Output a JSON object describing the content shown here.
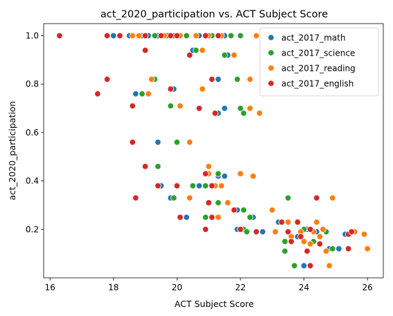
{
  "chart_data": {
    "type": "scatter",
    "title": "act_2020_participation vs. ACT Subject Score",
    "xlabel": "ACT Subject Score",
    "ylabel": "act_2020_participation",
    "xlim": [
      15.8,
      26.5
    ],
    "ylim": [
      0.0,
      1.05
    ],
    "xticks": [
      "16",
      "18",
      "20",
      "22",
      "24",
      "26"
    ],
    "xtick_values": [
      16,
      18,
      20,
      22,
      24,
      26
    ],
    "yticks": [
      "0.2",
      "0.4",
      "0.6",
      "0.8",
      "1.0"
    ],
    "ytick_values": [
      0.2,
      0.4,
      0.6,
      0.8,
      1.0
    ],
    "grid": false,
    "legend_position": "top-right",
    "series": [
      {
        "name": "act_2017_math",
        "color": "#1f77b4",
        "points": [
          [
            18.0,
            1.0
          ],
          [
            18.5,
            1.0
          ],
          [
            18.8,
            1.0
          ],
          [
            19.1,
            1.0
          ],
          [
            19.4,
            1.0
          ],
          [
            19.7,
            1.0
          ],
          [
            20.1,
            1.0
          ],
          [
            20.7,
            1.0
          ],
          [
            21.5,
            1.0
          ],
          [
            22.0,
            1.0
          ],
          [
            20.5,
            0.94
          ],
          [
            21.6,
            0.92
          ],
          [
            19.9,
            0.78
          ],
          [
            21.3,
            0.82
          ],
          [
            18.7,
            0.76
          ],
          [
            21.3,
            0.68
          ],
          [
            21.5,
            0.7
          ],
          [
            19.4,
            0.56
          ],
          [
            21.0,
            0.43
          ],
          [
            21.3,
            0.42
          ],
          [
            21.5,
            0.42
          ],
          [
            19.5,
            0.38
          ],
          [
            20.7,
            0.38
          ],
          [
            19.8,
            0.33
          ],
          [
            20.3,
            0.25
          ],
          [
            21.3,
            0.31
          ],
          [
            21.9,
            0.28
          ],
          [
            22.4,
            0.25
          ],
          [
            21.9,
            0.2
          ],
          [
            22.7,
            0.19
          ],
          [
            23.2,
            0.23
          ],
          [
            23.4,
            0.15
          ],
          [
            23.4,
            0.11
          ],
          [
            23.8,
            0.17
          ],
          [
            24.0,
            0.2
          ],
          [
            24.1,
            0.2
          ],
          [
            24.0,
            0.05
          ],
          [
            24.4,
            0.19
          ],
          [
            24.8,
            0.12
          ],
          [
            25.1,
            0.12
          ],
          [
            25.3,
            0.18
          ],
          [
            25.5,
            0.19
          ]
        ]
      },
      {
        "name": "act_2017_science",
        "color": "#2ca02c",
        "points": [
          [
            18.2,
            1.0
          ],
          [
            18.9,
            1.0
          ],
          [
            19.3,
            1.0
          ],
          [
            19.9,
            1.0
          ],
          [
            20.3,
            1.0
          ],
          [
            21.1,
            1.0
          ],
          [
            21.7,
            1.0
          ],
          [
            22.0,
            1.0
          ],
          [
            20.6,
            0.94
          ],
          [
            21.5,
            0.92
          ],
          [
            19.3,
            0.82
          ],
          [
            21.9,
            0.82
          ],
          [
            18.9,
            0.76
          ],
          [
            19.8,
            0.71
          ],
          [
            22.0,
            0.7
          ],
          [
            22.1,
            0.68
          ],
          [
            20.0,
            0.56
          ],
          [
            19.4,
            0.46
          ],
          [
            21.0,
            0.43
          ],
          [
            21.3,
            0.43
          ],
          [
            20.5,
            0.38
          ],
          [
            20.9,
            0.38
          ],
          [
            19.9,
            0.33
          ],
          [
            21.3,
            0.31
          ],
          [
            20.9,
            0.25
          ],
          [
            22.1,
            0.28
          ],
          [
            22.3,
            0.25
          ],
          [
            22.1,
            0.2
          ],
          [
            22.2,
            0.19
          ],
          [
            23.5,
            0.33
          ],
          [
            23.3,
            0.23
          ],
          [
            23.4,
            0.15
          ],
          [
            23.4,
            0.11
          ],
          [
            23.7,
            0.05
          ],
          [
            24.0,
            0.2
          ],
          [
            24.1,
            0.11
          ],
          [
            24.3,
            0.15
          ],
          [
            24.7,
            0.19
          ],
          [
            24.9,
            0.12
          ]
        ]
      },
      {
        "name": "act_2017_reading",
        "color": "#ff7f0e",
        "points": [
          [
            18.6,
            1.0
          ],
          [
            18.8,
            1.0
          ],
          [
            19.0,
            1.0
          ],
          [
            19.6,
            1.0
          ],
          [
            20.1,
            1.0
          ],
          [
            20.6,
            1.0
          ],
          [
            21.0,
            1.0
          ],
          [
            21.4,
            1.0
          ],
          [
            22.5,
            1.0
          ],
          [
            20.8,
            0.94
          ],
          [
            21.8,
            0.92
          ],
          [
            19.2,
            0.82
          ],
          [
            22.3,
            0.82
          ],
          [
            19.1,
            0.76
          ],
          [
            20.8,
            0.78
          ],
          [
            20.1,
            0.71
          ],
          [
            22.3,
            0.7
          ],
          [
            22.6,
            0.68
          ],
          [
            20.4,
            0.56
          ],
          [
            21.0,
            0.46
          ],
          [
            21.0,
            0.43
          ],
          [
            22.0,
            0.43
          ],
          [
            22.4,
            0.42
          ],
          [
            21.2,
            0.38
          ],
          [
            21.4,
            0.38
          ],
          [
            20.4,
            0.33
          ],
          [
            21.6,
            0.31
          ],
          [
            21.3,
            0.25
          ],
          [
            22.0,
            0.2
          ],
          [
            23.0,
            0.28
          ],
          [
            23.1,
            0.19
          ],
          [
            23.5,
            0.23
          ],
          [
            23.6,
            0.17
          ],
          [
            23.9,
            0.19
          ],
          [
            24.0,
            0.15
          ],
          [
            24.2,
            0.14
          ],
          [
            24.3,
            0.19
          ],
          [
            24.4,
            0.23
          ],
          [
            24.5,
            0.17
          ],
          [
            24.6,
            0.2
          ],
          [
            24.7,
            0.11
          ],
          [
            24.8,
            0.05
          ],
          [
            24.9,
            0.33
          ],
          [
            25.6,
            0.19
          ],
          [
            25.9,
            0.18
          ],
          [
            26.0,
            0.12
          ]
        ]
      },
      {
        "name": "act_2017_english",
        "color": "#d62728",
        "points": [
          [
            16.3,
            1.0
          ],
          [
            17.8,
            1.0
          ],
          [
            18.2,
            1.0
          ],
          [
            19.0,
            1.0
          ],
          [
            19.5,
            1.0
          ],
          [
            19.8,
            1.0
          ],
          [
            20.0,
            1.0
          ],
          [
            20.9,
            1.0
          ],
          [
            21.3,
            1.0
          ],
          [
            19.0,
            0.94
          ],
          [
            20.4,
            0.92
          ],
          [
            17.8,
            0.82
          ],
          [
            21.1,
            0.82
          ],
          [
            17.5,
            0.76
          ],
          [
            19.8,
            0.78
          ],
          [
            18.6,
            0.71
          ],
          [
            20.7,
            0.7
          ],
          [
            21.2,
            0.68
          ],
          [
            18.6,
            0.56
          ],
          [
            19.0,
            0.46
          ],
          [
            20.9,
            0.43
          ],
          [
            21.1,
            0.38
          ],
          [
            19.4,
            0.38
          ],
          [
            20.0,
            0.38
          ],
          [
            18.7,
            0.33
          ],
          [
            21.0,
            0.31
          ],
          [
            20.1,
            0.25
          ],
          [
            20.9,
            0.2
          ],
          [
            21.8,
            0.28
          ],
          [
            21.1,
            0.25
          ],
          [
            22.0,
            0.2
          ],
          [
            22.0,
            0.2
          ],
          [
            22.5,
            0.19
          ],
          [
            23.3,
            0.23
          ],
          [
            23.5,
            0.19
          ],
          [
            23.6,
            0.15
          ],
          [
            23.8,
            0.23
          ],
          [
            23.9,
            0.17
          ],
          [
            24.2,
            0.2
          ],
          [
            24.1,
            0.11
          ],
          [
            24.2,
            0.05
          ],
          [
            24.4,
            0.33
          ],
          [
            24.5,
            0.14
          ],
          [
            25.4,
            0.18
          ],
          [
            25.4,
            0.12
          ],
          [
            25.5,
            0.19
          ]
        ]
      }
    ]
  }
}
